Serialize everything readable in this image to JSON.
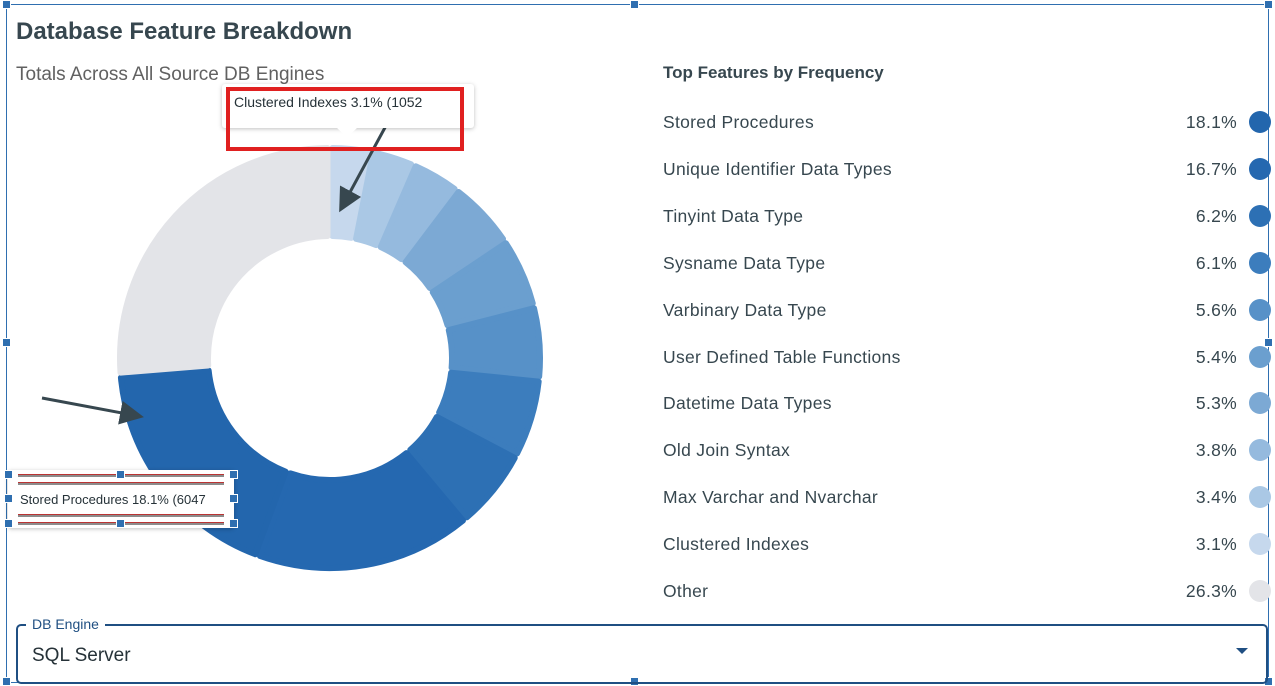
{
  "header": {
    "title": "Database Feature Breakdown",
    "subtitle": "Totals Across All Source DB Engines"
  },
  "tooltips": {
    "top": "Clustered Indexes 3.1% (1052",
    "bottom": "Stored Procedures 18.1% (6047"
  },
  "legend": {
    "title": "Top Features by Frequency"
  },
  "chart_data": {
    "type": "pie",
    "variant": "donut",
    "categories": [
      "Stored Procedures",
      "Unique Identifier Data Types",
      "Tinyint Data Type",
      "Sysname Data Type",
      "Varbinary Data Type",
      "User Defined Table Functions",
      "Datetime Data Types",
      "Old Join Syntax",
      "Max Varchar and Nvarchar",
      "Clustered Indexes",
      "Other"
    ],
    "values": [
      18.1,
      16.7,
      6.2,
      6.1,
      5.6,
      5.4,
      5.3,
      3.8,
      3.4,
      3.1,
      26.3
    ],
    "value_labels": [
      "18.1%",
      "16.7%",
      "6.2%",
      "6.1%",
      "5.6%",
      "5.4%",
      "5.3%",
      "3.8%",
      "3.4%",
      "3.1%",
      "26.3%"
    ],
    "colors": [
      "#2366ad",
      "#2568b0",
      "#2d70b4",
      "#3c7dbd",
      "#5791c8",
      "#6b9fcf",
      "#7ca9d4",
      "#95bade",
      "#aac8e5",
      "#c6d8ed",
      "#e3e4e8"
    ],
    "legend_placement": "right",
    "highlighted": "Clustered Indexes"
  },
  "filter": {
    "label": "DB Engine",
    "value": "SQL Server"
  }
}
